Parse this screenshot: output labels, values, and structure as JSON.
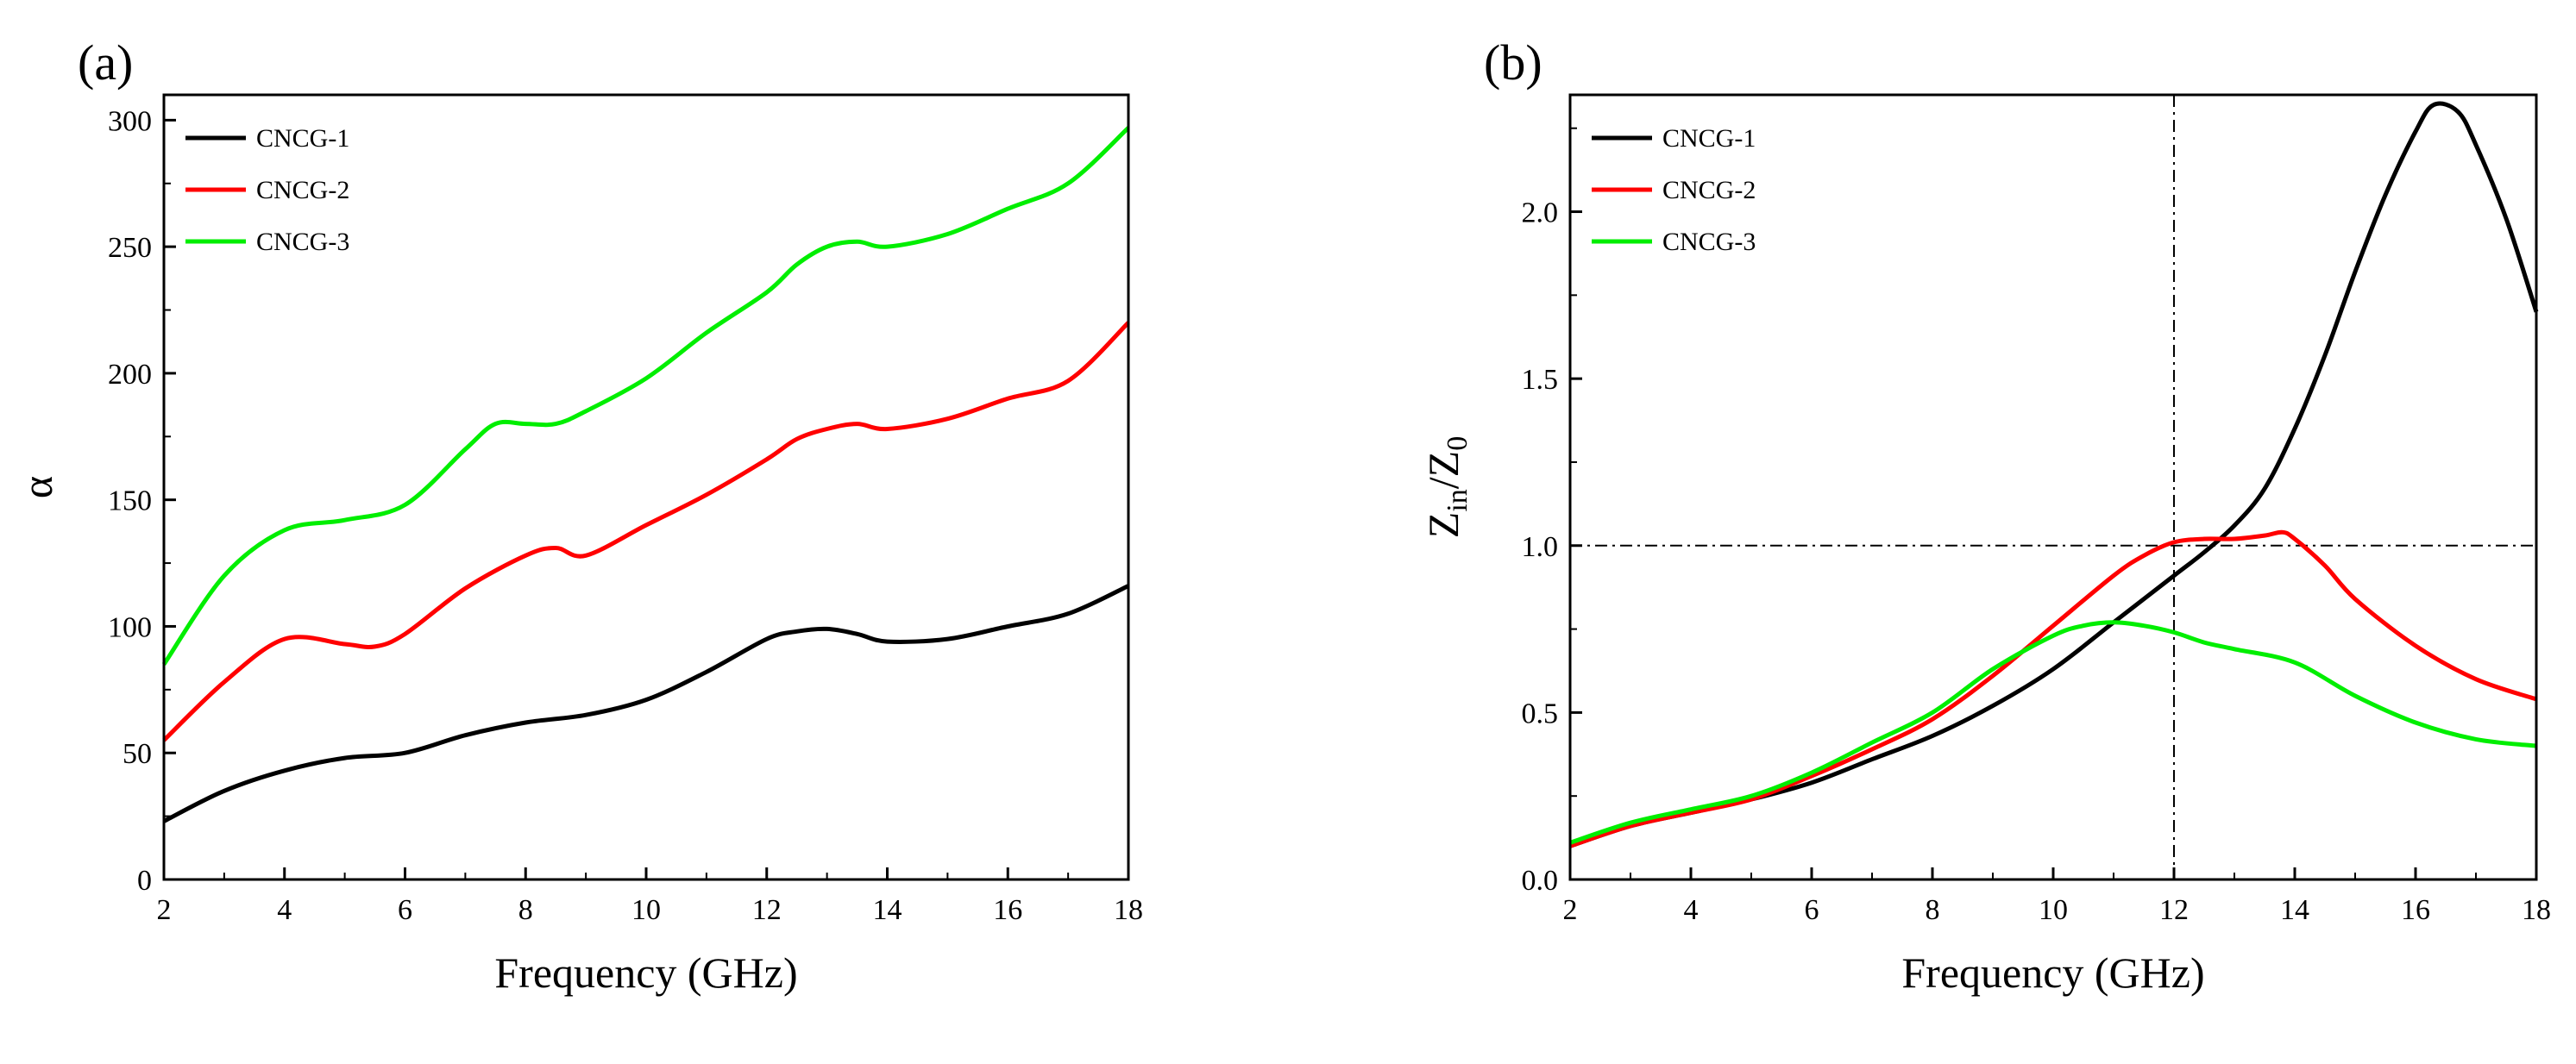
{
  "colors": {
    "CNCG-1": "#000000",
    "CNCG-2": "#ff0000",
    "CNCG-3": "#00ee00"
  },
  "chart_data": [
    {
      "type": "line",
      "panel_label": "(a)",
      "xlabel": "Frequency (GHz)",
      "ylabel": "α",
      "xlim": [
        2,
        18
      ],
      "ylim": [
        0,
        310
      ],
      "xticks": [
        2,
        4,
        6,
        8,
        10,
        12,
        14,
        16,
        18
      ],
      "yticks": [
        0,
        50,
        100,
        150,
        200,
        250,
        300
      ],
      "legend_position": "top-left",
      "reference_lines": [],
      "series": [
        {
          "name": "CNCG-1",
          "color": "#000000",
          "x": [
            2,
            3,
            4,
            5,
            6,
            7,
            8,
            9,
            10,
            11,
            12,
            12.5,
            13,
            13.5,
            14,
            15,
            16,
            17,
            18
          ],
          "y": [
            23,
            35,
            43,
            48,
            50,
            57,
            62,
            65,
            71,
            82,
            95,
            98,
            99,
            97,
            94,
            95,
            100,
            105,
            116
          ]
        },
        {
          "name": "CNCG-2",
          "color": "#ff0000",
          "x": [
            2,
            3,
            4,
            5,
            5.5,
            6,
            7,
            8,
            8.5,
            9,
            10,
            11,
            12,
            12.5,
            13,
            13.5,
            14,
            15,
            16,
            17,
            18
          ],
          "y": [
            55,
            78,
            95,
            93,
            92,
            97,
            115,
            128,
            131,
            128,
            140,
            152,
            166,
            174,
            178,
            180,
            178,
            182,
            190,
            197,
            220
          ]
        },
        {
          "name": "CNCG-3",
          "color": "#00ee00",
          "x": [
            2,
            3,
            4,
            5,
            6,
            7,
            7.5,
            8,
            8.5,
            9,
            10,
            11,
            12,
            12.5,
            13,
            13.5,
            14,
            15,
            16,
            17,
            18
          ],
          "y": [
            85,
            120,
            138,
            142,
            148,
            170,
            180,
            180,
            180,
            185,
            198,
            216,
            232,
            243,
            250,
            252,
            250,
            255,
            265,
            275,
            297
          ]
        }
      ]
    },
    {
      "type": "line",
      "panel_label": "(b)",
      "xlabel": "Frequency (GHz)",
      "ylabel_main": "Z",
      "ylabel_sub1": "in",
      "ylabel_mid": "/Z",
      "ylabel_sub2": "0",
      "xlim": [
        2,
        18
      ],
      "ylim": [
        0,
        2.35
      ],
      "xticks": [
        2,
        4,
        6,
        8,
        10,
        12,
        14,
        16,
        18
      ],
      "yticks": [
        0.0,
        0.5,
        1.0,
        1.5,
        2.0
      ],
      "ytick_labels": [
        "0.0",
        "0.5",
        "1.0",
        "1.5",
        "2.0"
      ],
      "legend_position": "top-left",
      "reference_lines": [
        {
          "axis": "x",
          "value": 12
        },
        {
          "axis": "y",
          "value": 1.0
        }
      ],
      "series": [
        {
          "name": "CNCG-1",
          "color": "#000000",
          "x": [
            2,
            3,
            4,
            5,
            6,
            7,
            8,
            9,
            10,
            11,
            12,
            12.5,
            13,
            13.5,
            14,
            14.5,
            15,
            15.5,
            16,
            16.3,
            16.7,
            17,
            17.5,
            18
          ],
          "y": [
            0.1,
            0.16,
            0.2,
            0.24,
            0.29,
            0.36,
            0.43,
            0.52,
            0.63,
            0.77,
            0.91,
            0.98,
            1.06,
            1.17,
            1.35,
            1.57,
            1.82,
            2.05,
            2.24,
            2.32,
            2.3,
            2.2,
            1.98,
            1.7
          ]
        },
        {
          "name": "CNCG-2",
          "color": "#ff0000",
          "x": [
            2,
            3,
            4,
            5,
            6,
            7,
            8,
            9,
            10,
            11,
            11.5,
            12,
            12.5,
            13,
            13.5,
            13.8,
            14,
            14.5,
            15,
            16,
            17,
            18
          ],
          "y": [
            0.1,
            0.16,
            0.2,
            0.24,
            0.31,
            0.39,
            0.48,
            0.61,
            0.76,
            0.91,
            0.97,
            1.01,
            1.02,
            1.02,
            1.03,
            1.04,
            1.02,
            0.94,
            0.84,
            0.7,
            0.6,
            0.54
          ]
        },
        {
          "name": "CNCG-3",
          "color": "#00ee00",
          "x": [
            2,
            3,
            4,
            5,
            6,
            7,
            8,
            9,
            10,
            10.5,
            11,
            11.5,
            12,
            12.5,
            13,
            14,
            15,
            16,
            17,
            18
          ],
          "y": [
            0.11,
            0.17,
            0.21,
            0.25,
            0.32,
            0.41,
            0.5,
            0.63,
            0.73,
            0.76,
            0.77,
            0.76,
            0.74,
            0.71,
            0.69,
            0.65,
            0.55,
            0.47,
            0.42,
            0.4
          ]
        }
      ]
    }
  ]
}
